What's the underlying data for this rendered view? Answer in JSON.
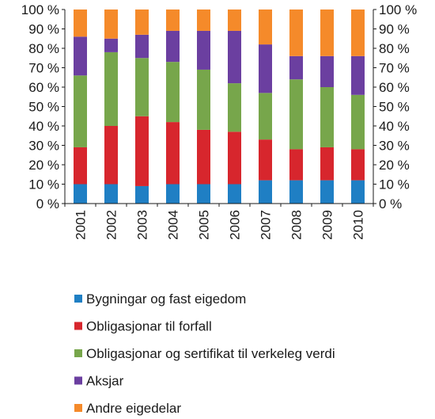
{
  "chart_data": {
    "type": "bar",
    "stacked": true,
    "percent_stacked": true,
    "categories": [
      "2001",
      "2002",
      "2003",
      "2004",
      "2005",
      "2006",
      "2007",
      "2008",
      "2009",
      "2010"
    ],
    "series": [
      {
        "name": "Bygningar og fast eigedom",
        "color": "#1f7fc4",
        "values": [
          10,
          10,
          9,
          10,
          10,
          10,
          12,
          12,
          12,
          12
        ]
      },
      {
        "name": "Obligasjonar  til forfall",
        "color": "#d7262d",
        "values": [
          19,
          30,
          36,
          32,
          28,
          27,
          21,
          16,
          17,
          16
        ]
      },
      {
        "name": "Obligasjonar og sertifikat til verkeleg verdi",
        "color": "#77a64b",
        "values": [
          37,
          38,
          30,
          31,
          31,
          25,
          24,
          36,
          31,
          28
        ]
      },
      {
        "name": "Aksjar",
        "color": "#6b3fa0",
        "values": [
          20,
          7,
          12,
          16,
          20,
          27,
          25,
          12,
          16,
          20
        ]
      },
      {
        "name": "Andre eigedelar",
        "color": "#f58a2a",
        "values": [
          14,
          15,
          13,
          11,
          11,
          11,
          18,
          24,
          24,
          24
        ]
      }
    ],
    "ylim": [
      0,
      100
    ],
    "yticks": [
      "0 %",
      "10 %",
      "20 %",
      "30 %",
      "40 %",
      "50 %",
      "60 %",
      "70 %",
      "80 %",
      "90 %",
      "100 %"
    ],
    "ytick_values": [
      0,
      10,
      20,
      30,
      40,
      50,
      60,
      70,
      80,
      90,
      100
    ],
    "title": "",
    "xlabel": "",
    "ylabel": "",
    "grid": false,
    "legend": "bottom",
    "dual_y_axis": true
  }
}
